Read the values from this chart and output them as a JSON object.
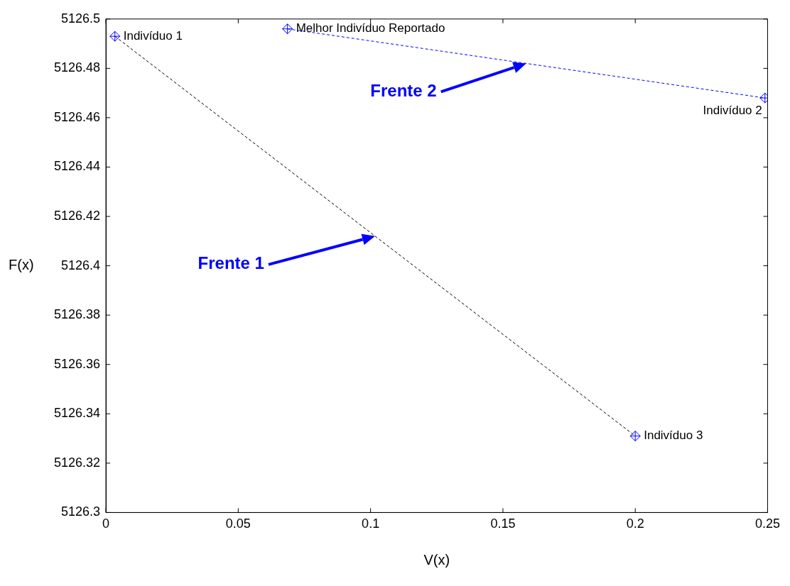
{
  "chart_data": {
    "type": "line",
    "xlabel": "V(x)",
    "ylabel": "F(x)",
    "xlim": [
      0,
      0.25
    ],
    "xticks": [
      0,
      0.05,
      0.1,
      0.15,
      0.2,
      0.25
    ],
    "ylim": [
      5126.3,
      5126.5
    ],
    "yticks": [
      5126.3,
      5126.32,
      5126.34,
      5126.36,
      5126.38,
      5126.4,
      5126.42,
      5126.44,
      5126.46,
      5126.48,
      5126.5
    ],
    "grid": false,
    "series": [
      {
        "color": "#000000",
        "colors": [
          "#0000ff",
          "#0000ff"
        ],
        "line_style": "dashed",
        "marker": "diamond",
        "x": [
          0.0034,
          0.2
        ],
        "values": [
          5126.493,
          5126.331
        ]
      },
      {
        "color": "#0000ff",
        "line_style": "dashed",
        "marker": "diamond",
        "x": [
          0.0686,
          0.249
        ],
        "values": [
          5126.496,
          5126.468
        ]
      }
    ],
    "annotations": [
      {
        "text": "Indivíduo 1",
        "x": 0.0034,
        "y": 5126.493
      },
      {
        "text": "Melhor Indivíduo Reportado",
        "x": 0.0686,
        "y": 5126.496
      },
      {
        "text": "Indivíduo 2",
        "x": 0.249,
        "y": 5126.468
      },
      {
        "text": "Indivíduo 3",
        "x": 0.2,
        "y": 5126.331
      },
      "Frente 1",
      "Frente 2"
    ]
  }
}
